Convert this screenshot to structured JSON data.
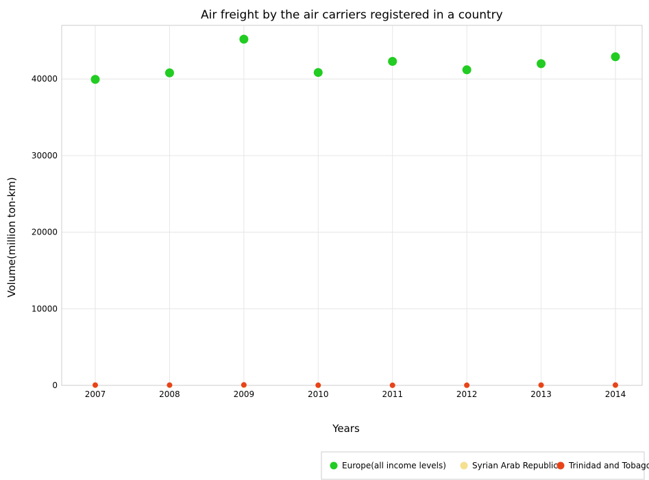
{
  "chart_data": {
    "type": "scatter",
    "title": "Air freight by the air carriers registered in a country",
    "xlabel": "Years",
    "ylabel": "Volume(million ton-km)",
    "categories": [
      "2007",
      "2008",
      "2009",
      "2010",
      "2011",
      "2012",
      "2013",
      "2014"
    ],
    "ylim": [
      0,
      47000
    ],
    "yticks": [
      0,
      10000,
      20000,
      30000,
      40000
    ],
    "ytick_labels": [
      "0",
      "10000",
      "20000",
      "30000",
      "40000"
    ],
    "grid": true,
    "legend_position": "bottom-right",
    "series": [
      {
        "name": "Europe(all income levels)",
        "color": "#22cc22",
        "values": [
          39950,
          40800,
          45200,
          40850,
          42300,
          41200,
          42000,
          42900
        ]
      },
      {
        "name": "Syrian Arab Republic",
        "color": "#f5e090",
        "values": [
          17,
          15,
          12,
          10,
          8,
          6,
          5,
          5
        ]
      },
      {
        "name": "Trinidad and Tobago",
        "color": "#e8441a",
        "values": [
          35,
          37,
          63,
          18,
          15,
          17,
          37,
          40
        ]
      }
    ]
  }
}
